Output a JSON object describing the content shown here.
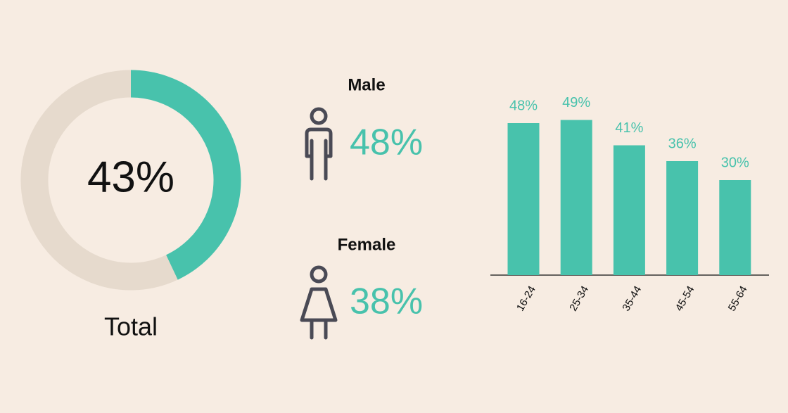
{
  "chart_data": [
    {
      "type": "donut",
      "title": "Total",
      "values": [
        43,
        57
      ],
      "value_labels": [
        "43%",
        null
      ],
      "colors": [
        "#48c2ac",
        "#e6dacd"
      ]
    },
    {
      "type": "stat",
      "categories": [
        "Male",
        "Female"
      ],
      "values": [
        48,
        38
      ],
      "value_labels": [
        "48%",
        "38%"
      ],
      "color": "#48c2ac"
    },
    {
      "type": "bar",
      "categories": [
        "16-24",
        "25-34",
        "35-44",
        "45-54",
        "55-64"
      ],
      "values": [
        48,
        49,
        41,
        36,
        30
      ],
      "value_labels": [
        "48%",
        "49%",
        "41%",
        "36%",
        "30%"
      ],
      "color": "#48c2ac"
    }
  ]
}
